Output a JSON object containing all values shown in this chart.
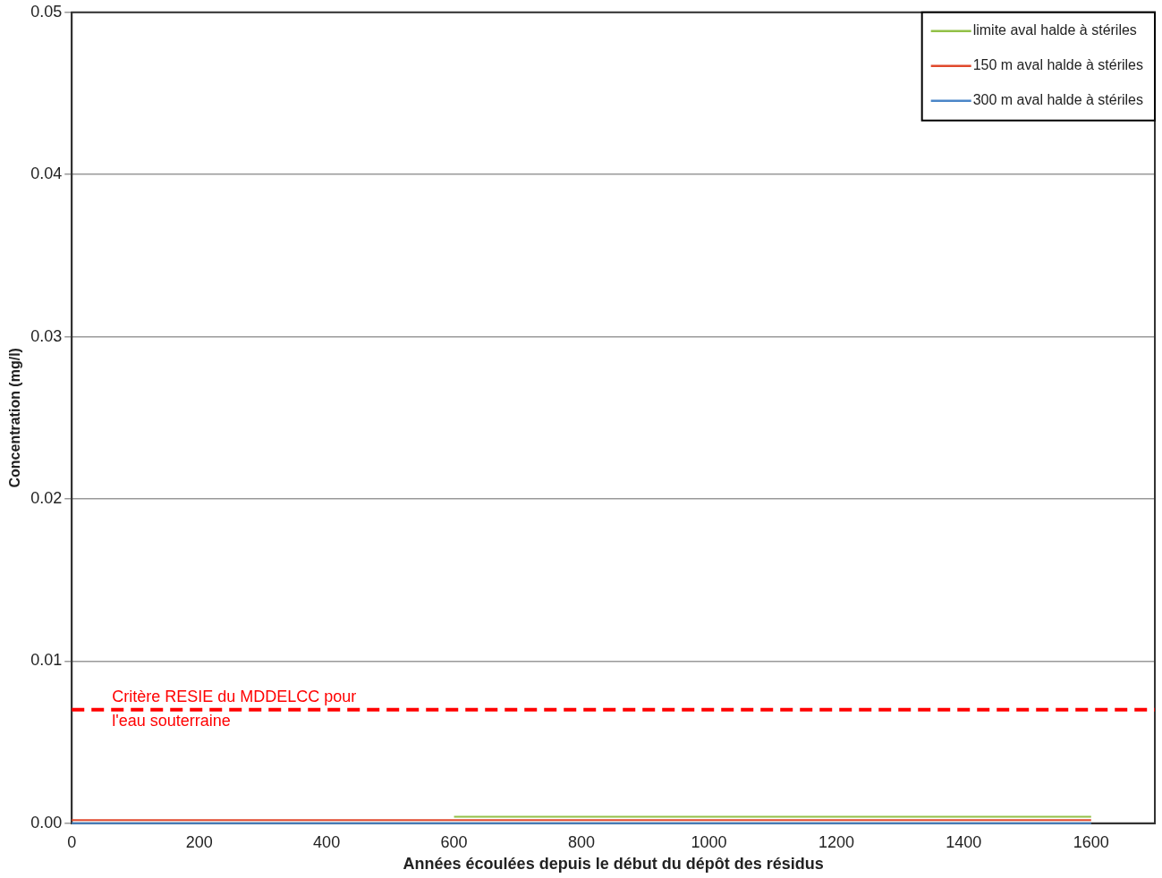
{
  "chart_data": {
    "type": "line",
    "xlabel": "Années écoulées depuis le début du dépôt des résidus",
    "ylabel": "Concentration (mg/l)",
    "x": [
      0,
      200,
      400,
      600,
      800,
      1000,
      1200,
      1400,
      1600
    ],
    "series": [
      {
        "name": "limite aval halde à stériles",
        "color": "#92c047",
        "values": [
          null,
          null,
          null,
          0.0004,
          0.0004,
          0.0004,
          0.0004,
          0.0004,
          0.0004
        ]
      },
      {
        "name": "150 m aval halde à stériles",
        "color": "#e0492c",
        "values": [
          0.0002,
          0.0002,
          0.0002,
          0.0002,
          0.0002,
          0.0002,
          0.0002,
          0.0002,
          0.0002
        ]
      },
      {
        "name": "300 m aval halde à stériles",
        "color": "#4a86c8",
        "values": [
          0,
          0,
          0,
          0,
          0,
          0,
          0,
          0,
          0
        ]
      }
    ],
    "xlim": [
      0,
      1700
    ],
    "xticks": [
      0,
      200,
      400,
      600,
      800,
      1000,
      1200,
      1400,
      1600
    ],
    "ylim": [
      0,
      0.05
    ],
    "yticks": [
      {
        "value": 0,
        "label": "0.00"
      },
      0.01,
      0.02,
      0.03,
      0.04,
      0.05
    ],
    "ref_lines": [
      {
        "axis": "y",
        "value": 0.007,
        "label": "Critère RESIE du MDDELCC pour l'eau souterraine",
        "color": "#ff0000",
        "line_style": "dashed"
      }
    ],
    "grid": "y",
    "legend": "top right",
    "marker": "none",
    "line_style": "solid"
  }
}
